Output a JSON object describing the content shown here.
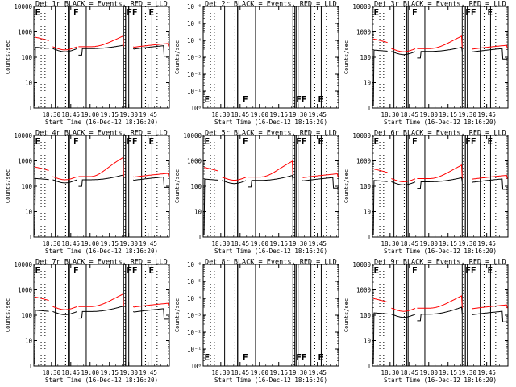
{
  "figure": {
    "colors": {
      "events": "#000000",
      "lld": "#ff0000",
      "axes": "#000000"
    },
    "x_tick_labels": [
      "18:30",
      "18:45",
      "19:00",
      "19:15",
      "19:30",
      "19:45"
    ],
    "x_tick_minutes": [
      30,
      45,
      60,
      75,
      90,
      105
    ],
    "x_range_minutes": [
      16.333,
      121.5
    ],
    "dotted_lines_minutes": [
      22,
      25,
      41,
      87,
      103,
      112
    ],
    "y_axis_label": "Counts/sec"
  },
  "chart_data": [
    {
      "type": "line",
      "title": "Det 1r BLACK = Events, RED = LLD",
      "xlabel": "Start Time (16-Dec-12 18:16:20)",
      "ylabel": "Counts/sec",
      "yscale": "log",
      "ylim": [
        1,
        10000
      ],
      "ytick_labels": [
        "1",
        "10",
        "100",
        "1000",
        "10000"
      ],
      "has_data": true,
      "markers": [
        "E",
        "F",
        "FF",
        "E"
      ],
      "events_level": 220,
      "lld_level": 260,
      "events_peak": 300,
      "lld_peak": 700
    },
    {
      "type": "line",
      "title": "Det 2r BLACK = Events, RED = LLD",
      "xlabel": "Start Time (16-Dec-12 18:16:20)",
      "ylabel": "Counts/sec",
      "yscale": "log",
      "ylim": [
        1,
        1e-06
      ],
      "ytick_labels": [
        "10⁰",
        "10⁻¹",
        "10⁻²",
        "10⁻³",
        "10⁻⁴",
        "10⁻⁵",
        "10⁻⁶"
      ],
      "has_data": false,
      "markers": [
        "E",
        "F",
        "FF",
        "E"
      ]
    },
    {
      "type": "line",
      "title": "Det 3r BLACK = Events, RED = LLD",
      "xlabel": "Start Time (16-Dec-12 18:16:20)",
      "ylabel": "Counts/sec",
      "yscale": "log",
      "ylim": [
        1,
        10000
      ],
      "ytick_labels": [
        "1",
        "10",
        "100",
        "1000",
        "10000"
      ],
      "has_data": true,
      "markers": [
        "E",
        "F",
        "FF",
        "E"
      ],
      "events_level": 170,
      "lld_level": 220,
      "events_peak": 250,
      "lld_peak": 700
    },
    {
      "type": "line",
      "title": "Det 4r BLACK = Events, RED = LLD",
      "xlabel": "Start Time (16-Dec-12 18:16:20)",
      "ylabel": "Counts/sec",
      "yscale": "log",
      "ylim": [
        1,
        10000
      ],
      "ytick_labels": [
        "1",
        "10",
        "100",
        "1000",
        "10000"
      ],
      "has_data": true,
      "markers": [
        "E",
        "F",
        "FF",
        "E"
      ],
      "events_level": 180,
      "lld_level": 240,
      "events_peak": 280,
      "lld_peak": 1400
    },
    {
      "type": "line",
      "title": "Det 5r BLACK = Events, RED = LLD",
      "xlabel": "Start Time (16-Dec-12 18:16:20)",
      "ylabel": "Counts/sec",
      "yscale": "log",
      "ylim": [
        1,
        10000
      ],
      "ytick_labels": [
        "1",
        "10",
        "100",
        "1000",
        "10000"
      ],
      "has_data": true,
      "markers": [
        "E",
        "F",
        "FF",
        "E"
      ],
      "events_level": 170,
      "lld_level": 230,
      "events_peak": 270,
      "lld_peak": 1000
    },
    {
      "type": "line",
      "title": "Det 6r BLACK = Events, RED = LLD",
      "xlabel": "Start Time (16-Dec-12 18:16:20)",
      "ylabel": "Counts/sec",
      "yscale": "log",
      "ylim": [
        1,
        10000
      ],
      "ytick_labels": [
        "1",
        "10",
        "100",
        "1000",
        "10000"
      ],
      "has_data": true,
      "markers": [
        "E",
        "F",
        "FF",
        "E"
      ],
      "events_level": 150,
      "lld_level": 200,
      "events_peak": 220,
      "lld_peak": 700
    },
    {
      "type": "line",
      "title": "Det 7r BLACK = Events, RED = LLD",
      "xlabel": "Start Time (16-Dec-12 18:16:20)",
      "ylabel": "Counts/sec",
      "yscale": "log",
      "ylim": [
        1,
        10000
      ],
      "ytick_labels": [
        "1",
        "10",
        "100",
        "1000",
        "10000"
      ],
      "has_data": true,
      "markers": [
        "E",
        "F",
        "FF",
        "E"
      ],
      "events_level": 140,
      "lld_level": 220,
      "events_peak": 230,
      "lld_peak": 700
    },
    {
      "type": "line",
      "title": "Det 8r BLACK = Events, RED = LLD",
      "xlabel": "Start Time (16-Dec-12 18:16:20)",
      "ylabel": "Counts/sec",
      "yscale": "log",
      "ylim": [
        1,
        1e-06
      ],
      "ytick_labels": [
        "10⁰",
        "10⁻¹",
        "10⁻²",
        "10⁻³",
        "10⁻⁴",
        "10⁻⁵",
        "10⁻⁶"
      ],
      "has_data": false,
      "markers": [
        "E",
        "F",
        "FF",
        "E"
      ]
    },
    {
      "type": "line",
      "title": "Det 9r BLACK = Events, RED = LLD",
      "xlabel": "Start Time (16-Dec-12 18:16:20)",
      "ylabel": "Counts/sec",
      "yscale": "log",
      "ylim": [
        1,
        10000
      ],
      "ytick_labels": [
        "1",
        "10",
        "100",
        "1000",
        "10000"
      ],
      "has_data": true,
      "markers": [
        "E",
        "F",
        "FF",
        "E"
      ],
      "events_level": 110,
      "lld_level": 190,
      "events_peak": 210,
      "lld_peak": 600
    }
  ]
}
